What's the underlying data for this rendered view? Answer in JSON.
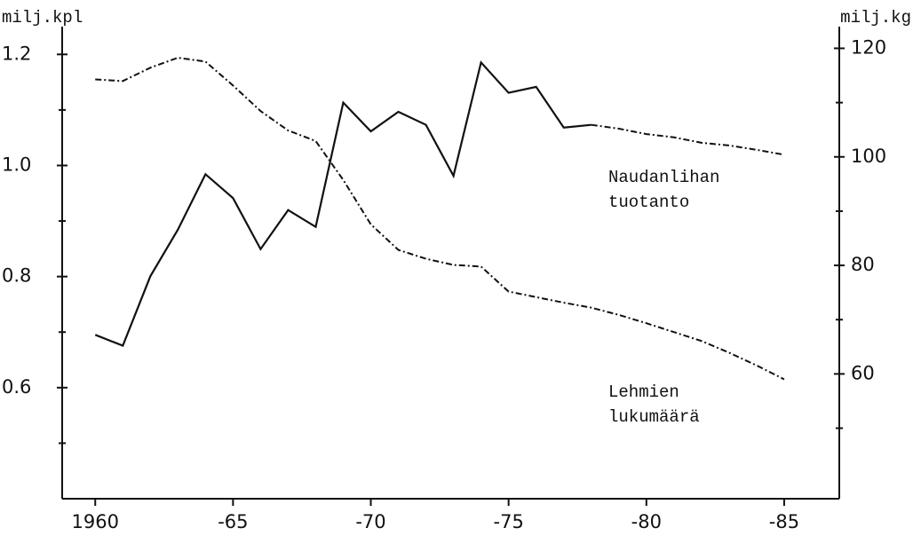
{
  "chart_data": {
    "type": "line",
    "ylabel": "milj.kpl",
    "y2label": "milj.kg",
    "x": [
      1960,
      1961,
      1962,
      1963,
      1964,
      1965,
      1966,
      1967,
      1968,
      1969,
      1970,
      1971,
      1972,
      1973,
      1974,
      1975,
      1976,
      1977,
      1978,
      1979,
      1980,
      1981,
      1982,
      1983,
      1984,
      1985
    ],
    "xlim": [
      1958.8,
      1987
    ],
    "xticks": [
      {
        "value": 1960,
        "label": "1960"
      },
      {
        "value": 1965,
        "label": "-65"
      },
      {
        "value": 1970,
        "label": "-70"
      },
      {
        "value": 1975,
        "label": "-75"
      },
      {
        "value": 1980,
        "label": "-80"
      },
      {
        "value": 1985,
        "label": "-85"
      }
    ],
    "ylim": [
      0.4,
      1.25
    ],
    "yticks": [
      0.6,
      0.8,
      {
        "value": 1,
        "label": "1.0"
      },
      1.2
    ],
    "yminorticks": [
      0.5,
      0.7,
      0.9,
      1.1
    ],
    "y2lim": [
      37,
      124
    ],
    "y2ticks": [
      60,
      80,
      100,
      120
    ],
    "y2minorticks": [
      50,
      70,
      90,
      110
    ],
    "series": [
      {
        "label": [
          "Naudanlihan",
          "tuotanto"
        ],
        "color": "#111111",
        "axis": "y2",
        "dashed_from": 1978,
        "values": [
          67.2,
          65.2,
          78,
          86.6,
          96.8,
          92.4,
          83,
          90.2,
          87.1,
          110,
          104.7,
          108.3,
          105.9,
          96.5,
          117.4,
          111.8,
          112.9,
          105.4,
          105.9,
          105.2,
          104.2,
          103.6,
          102.6,
          102.1,
          101.3,
          100.4
        ]
      },
      {
        "label": [
          "Lehmien",
          "lukumäärä"
        ],
        "color": "#111111",
        "axis": "y",
        "dashed_from": 1960,
        "values": [
          1.155,
          1.152,
          1.176,
          1.194,
          1.187,
          1.144,
          1.098,
          1.063,
          1.044,
          0.974,
          0.894,
          0.848,
          0.832,
          0.821,
          0.818,
          0.773,
          0.763,
          0.753,
          0.744,
          0.731,
          0.716,
          0.7,
          0.684,
          0.663,
          0.64,
          0.615
        ]
      }
    ]
  }
}
